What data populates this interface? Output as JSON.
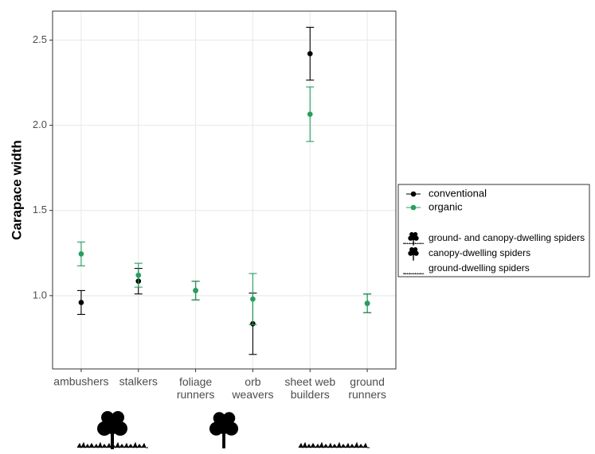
{
  "chart_data": {
    "type": "errorbar",
    "y_label": "Carapace width",
    "categories": [
      "ambushers",
      "stalkers",
      "foliage\nrunners",
      "orb\nweavers",
      "sheet web\nbuilders",
      "ground\nrunners"
    ],
    "series": [
      {
        "name": "conventional",
        "color": "#000000",
        "values": [
          0.96,
          1.085,
          1.03,
          0.835,
          2.42,
          0.955
        ],
        "errors": [
          0.07,
          0.075,
          0.055,
          0.18,
          0.155,
          0.055
        ]
      },
      {
        "name": "organic",
        "color": "#1aa55a",
        "values": [
          1.245,
          1.12,
          1.03,
          0.98,
          2.065,
          0.955
        ],
        "errors": [
          0.07,
          0.07,
          0.055,
          0.15,
          0.16,
          0.055
        ]
      }
    ],
    "habitat_legend": [
      "ground- and canopy-dwelling spiders",
      "canopy-dwelling spiders",
      "ground-dwelling spiders"
    ],
    "ylim": [
      0.57,
      2.67
    ],
    "yticks": [
      {
        "value": 1.0,
        "label": "1.0"
      },
      {
        "value": 1.5,
        "label": "1.5"
      },
      {
        "value": 2.0,
        "label": "2.0"
      },
      {
        "value": 2.5,
        "label": "2.5"
      }
    ],
    "grid": true
  }
}
